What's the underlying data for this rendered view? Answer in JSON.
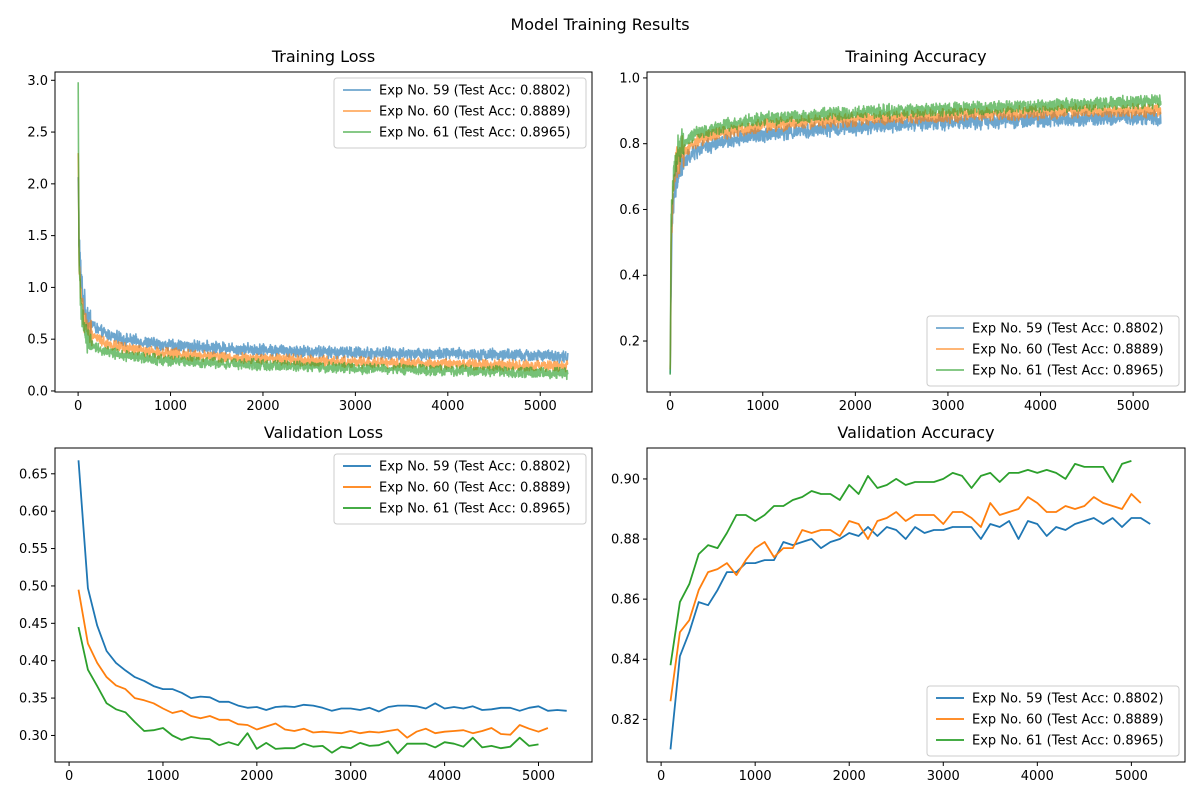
{
  "suptitle": "Model Training Results",
  "colors": {
    "exp59": "#1f77b4",
    "exp60": "#ff7f0e",
    "exp61": "#2ca02c"
  },
  "chart_data": [
    {
      "title": "Training Loss",
      "type": "line",
      "xlim": [
        -250,
        5560
      ],
      "ylim": [
        -0.01,
        3.08
      ],
      "xticks": [
        0,
        1000,
        2000,
        3000,
        4000,
        5000
      ],
      "yticks": [
        0.0,
        0.5,
        1.0,
        1.5,
        2.0,
        2.5,
        3.0
      ],
      "ytick_decimals": 1,
      "legend": "upper right",
      "line_alpha": 0.65,
      "noisy": true,
      "series": [
        {
          "name": "Exp No. 59 (Test Acc: 0.8802)",
          "color": "#1f77b4",
          "noise": 0.045,
          "x": [
            1,
            10,
            30,
            60,
            100,
            200,
            300,
            500,
            800,
            1000,
            1500,
            2000,
            2500,
            3000,
            3500,
            4000,
            4500,
            5000,
            5300
          ],
          "y": [
            2.05,
            1.5,
            1.1,
            0.85,
            0.72,
            0.6,
            0.55,
            0.5,
            0.46,
            0.44,
            0.42,
            0.4,
            0.38,
            0.37,
            0.36,
            0.36,
            0.35,
            0.34,
            0.33
          ]
        },
        {
          "name": "Exp No. 60 (Test Acc: 0.8889)",
          "color": "#ff7f0e",
          "noise": 0.04,
          "x": [
            1,
            10,
            30,
            60,
            100,
            200,
            300,
            500,
            800,
            1000,
            1500,
            2000,
            2500,
            3000,
            3500,
            4000,
            4500,
            5000,
            5300
          ],
          "y": [
            2.3,
            1.3,
            0.95,
            0.72,
            0.6,
            0.52,
            0.46,
            0.41,
            0.38,
            0.36,
            0.33,
            0.31,
            0.29,
            0.28,
            0.27,
            0.26,
            0.25,
            0.24,
            0.24
          ]
        },
        {
          "name": "Exp No. 61 (Test Acc: 0.8965)",
          "color": "#2ca02c",
          "noise": 0.04,
          "x": [
            1,
            10,
            30,
            60,
            100,
            200,
            300,
            500,
            800,
            1000,
            1500,
            2000,
            2500,
            3000,
            3500,
            4000,
            4500,
            5000,
            5300
          ],
          "y": [
            2.9,
            1.2,
            0.85,
            0.62,
            0.5,
            0.42,
            0.38,
            0.34,
            0.31,
            0.29,
            0.27,
            0.25,
            0.23,
            0.22,
            0.21,
            0.2,
            0.19,
            0.18,
            0.17
          ]
        }
      ]
    },
    {
      "title": "Training Accuracy",
      "type": "line",
      "xlim": [
        -250,
        5560
      ],
      "ylim": [
        0.045,
        1.018
      ],
      "xticks": [
        0,
        1000,
        2000,
        3000,
        4000,
        5000
      ],
      "yticks": [
        0.2,
        0.4,
        0.6,
        0.8,
        1.0
      ],
      "ytick_decimals": 1,
      "legend": "lower right",
      "line_alpha": 0.65,
      "noisy": true,
      "series": [
        {
          "name": "Exp No. 59 (Test Acc: 0.8802)",
          "color": "#1f77b4",
          "noise": 0.018,
          "x": [
            1,
            10,
            30,
            60,
            100,
            200,
            300,
            500,
            800,
            1000,
            1500,
            2000,
            2500,
            3000,
            3500,
            4000,
            4500,
            5000,
            5300
          ],
          "y": [
            0.1,
            0.4,
            0.6,
            0.68,
            0.72,
            0.76,
            0.78,
            0.8,
            0.82,
            0.83,
            0.84,
            0.85,
            0.86,
            0.865,
            0.87,
            0.875,
            0.877,
            0.88,
            0.88
          ]
        },
        {
          "name": "Exp No. 60 (Test Acc: 0.8889)",
          "color": "#ff7f0e",
          "noise": 0.016,
          "x": [
            1,
            10,
            30,
            60,
            100,
            200,
            300,
            500,
            800,
            1000,
            1500,
            2000,
            2500,
            3000,
            3500,
            4000,
            4500,
            5000,
            5300
          ],
          "y": [
            0.08,
            0.5,
            0.66,
            0.73,
            0.76,
            0.79,
            0.81,
            0.83,
            0.845,
            0.855,
            0.865,
            0.875,
            0.88,
            0.885,
            0.89,
            0.895,
            0.9,
            0.9,
            0.9
          ]
        },
        {
          "name": "Exp No. 61 (Test Acc: 0.8965)",
          "color": "#2ca02c",
          "noise": 0.016,
          "x": [
            1,
            10,
            30,
            60,
            100,
            200,
            300,
            500,
            800,
            1000,
            1500,
            2000,
            2500,
            3000,
            3500,
            4000,
            4500,
            5000,
            5300
          ],
          "y": [
            0.07,
            0.55,
            0.7,
            0.76,
            0.79,
            0.82,
            0.835,
            0.85,
            0.865,
            0.875,
            0.885,
            0.895,
            0.9,
            0.905,
            0.91,
            0.915,
            0.92,
            0.925,
            0.93
          ]
        }
      ]
    },
    {
      "title": "Validation Loss",
      "type": "line",
      "xlim": [
        -150,
        5570
      ],
      "ylim": [
        0.2645,
        0.6845
      ],
      "xticks": [
        0,
        1000,
        2000,
        3000,
        4000,
        5000
      ],
      "yticks": [
        0.3,
        0.35,
        0.4,
        0.45,
        0.5,
        0.55,
        0.6,
        0.65
      ],
      "ytick_decimals": 2,
      "legend": "upper right",
      "line_alpha": 1,
      "noisy": false,
      "series": [
        {
          "name": "Exp No. 59 (Test Acc: 0.8802)",
          "color": "#1f77b4",
          "step": 100,
          "start": 100,
          "y": [
            0.668,
            0.497,
            0.447,
            0.413,
            0.397,
            0.387,
            0.378,
            0.373,
            0.366,
            0.362,
            0.362,
            0.357,
            0.35,
            0.352,
            0.351,
            0.345,
            0.345,
            0.34,
            0.337,
            0.338,
            0.334,
            0.338,
            0.339,
            0.338,
            0.341,
            0.34,
            0.337,
            0.333,
            0.336,
            0.336,
            0.334,
            0.337,
            0.332,
            0.338,
            0.34,
            0.34,
            0.339,
            0.336,
            0.343,
            0.336,
            0.338,
            0.336,
            0.339,
            0.334,
            0.335,
            0.337,
            0.337,
            0.333,
            0.337,
            0.339,
            0.333,
            0.334,
            0.333
          ]
        },
        {
          "name": "Exp No. 60 (Test Acc: 0.8889)",
          "color": "#ff7f0e",
          "step": 100,
          "start": 100,
          "y": [
            0.495,
            0.423,
            0.397,
            0.378,
            0.367,
            0.362,
            0.35,
            0.347,
            0.343,
            0.336,
            0.33,
            0.333,
            0.326,
            0.323,
            0.326,
            0.321,
            0.321,
            0.315,
            0.314,
            0.308,
            0.312,
            0.316,
            0.308,
            0.306,
            0.309,
            0.304,
            0.305,
            0.304,
            0.303,
            0.306,
            0.303,
            0.305,
            0.304,
            0.306,
            0.308,
            0.297,
            0.305,
            0.309,
            0.303,
            0.305,
            0.306,
            0.307,
            0.303,
            0.306,
            0.31,
            0.302,
            0.301,
            0.314,
            0.309,
            0.305,
            0.31
          ]
        },
        {
          "name": "Exp No. 61 (Test Acc: 0.8965)",
          "color": "#2ca02c",
          "step": 100,
          "start": 100,
          "y": [
            0.445,
            0.388,
            0.366,
            0.343,
            0.335,
            0.331,
            0.318,
            0.306,
            0.307,
            0.31,
            0.3,
            0.294,
            0.298,
            0.296,
            0.295,
            0.287,
            0.291,
            0.287,
            0.303,
            0.282,
            0.29,
            0.282,
            0.283,
            0.283,
            0.289,
            0.285,
            0.286,
            0.277,
            0.285,
            0.283,
            0.29,
            0.286,
            0.287,
            0.292,
            0.276,
            0.289,
            0.289,
            0.289,
            0.284,
            0.291,
            0.289,
            0.285,
            0.297,
            0.284,
            0.286,
            0.283,
            0.285,
            0.297,
            0.286,
            0.288
          ]
        }
      ]
    },
    {
      "title": "Validation Accuracy",
      "type": "line",
      "xlim": [
        -150,
        5570
      ],
      "ylim": [
        0.8058,
        0.9103
      ],
      "xticks": [
        0,
        1000,
        2000,
        3000,
        4000,
        5000
      ],
      "yticks": [
        0.82,
        0.84,
        0.86,
        0.88,
        0.9
      ],
      "ytick_decimals": 2,
      "legend": "lower right",
      "line_alpha": 1,
      "noisy": false,
      "series": [
        {
          "name": "Exp No. 59 (Test Acc: 0.8802)",
          "color": "#1f77b4",
          "step": 100,
          "start": 100,
          "y": [
            0.81,
            0.841,
            0.849,
            0.859,
            0.858,
            0.863,
            0.869,
            0.869,
            0.872,
            0.872,
            0.873,
            0.873,
            0.879,
            0.878,
            0.879,
            0.88,
            0.877,
            0.879,
            0.88,
            0.882,
            0.881,
            0.884,
            0.881,
            0.884,
            0.883,
            0.88,
            0.884,
            0.882,
            0.883,
            0.883,
            0.884,
            0.884,
            0.884,
            0.88,
            0.885,
            0.884,
            0.886,
            0.88,
            0.886,
            0.885,
            0.881,
            0.884,
            0.883,
            0.885,
            0.886,
            0.887,
            0.885,
            0.887,
            0.884,
            0.887,
            0.887,
            0.885
          ]
        },
        {
          "name": "Exp No. 60 (Test Acc: 0.8889)",
          "color": "#ff7f0e",
          "step": 100,
          "start": 100,
          "y": [
            0.826,
            0.849,
            0.853,
            0.863,
            0.869,
            0.87,
            0.872,
            0.868,
            0.873,
            0.877,
            0.879,
            0.874,
            0.877,
            0.877,
            0.883,
            0.882,
            0.883,
            0.883,
            0.881,
            0.886,
            0.885,
            0.88,
            0.886,
            0.887,
            0.889,
            0.886,
            0.888,
            0.888,
            0.888,
            0.885,
            0.889,
            0.889,
            0.887,
            0.884,
            0.892,
            0.888,
            0.889,
            0.89,
            0.894,
            0.892,
            0.889,
            0.889,
            0.891,
            0.89,
            0.891,
            0.894,
            0.892,
            0.891,
            0.89,
            0.895,
            0.892
          ]
        },
        {
          "name": "Exp No. 61 (Test Acc: 0.8965)",
          "color": "#2ca02c",
          "step": 100,
          "start": 100,
          "y": [
            0.838,
            0.859,
            0.865,
            0.875,
            0.878,
            0.877,
            0.882,
            0.888,
            0.888,
            0.886,
            0.888,
            0.891,
            0.891,
            0.893,
            0.894,
            0.896,
            0.895,
            0.895,
            0.893,
            0.898,
            0.895,
            0.901,
            0.897,
            0.898,
            0.9,
            0.898,
            0.899,
            0.899,
            0.899,
            0.9,
            0.902,
            0.901,
            0.897,
            0.901,
            0.902,
            0.899,
            0.902,
            0.902,
            0.903,
            0.902,
            0.903,
            0.902,
            0.9,
            0.905,
            0.904,
            0.904,
            0.904,
            0.899,
            0.905,
            0.906
          ]
        }
      ]
    }
  ]
}
